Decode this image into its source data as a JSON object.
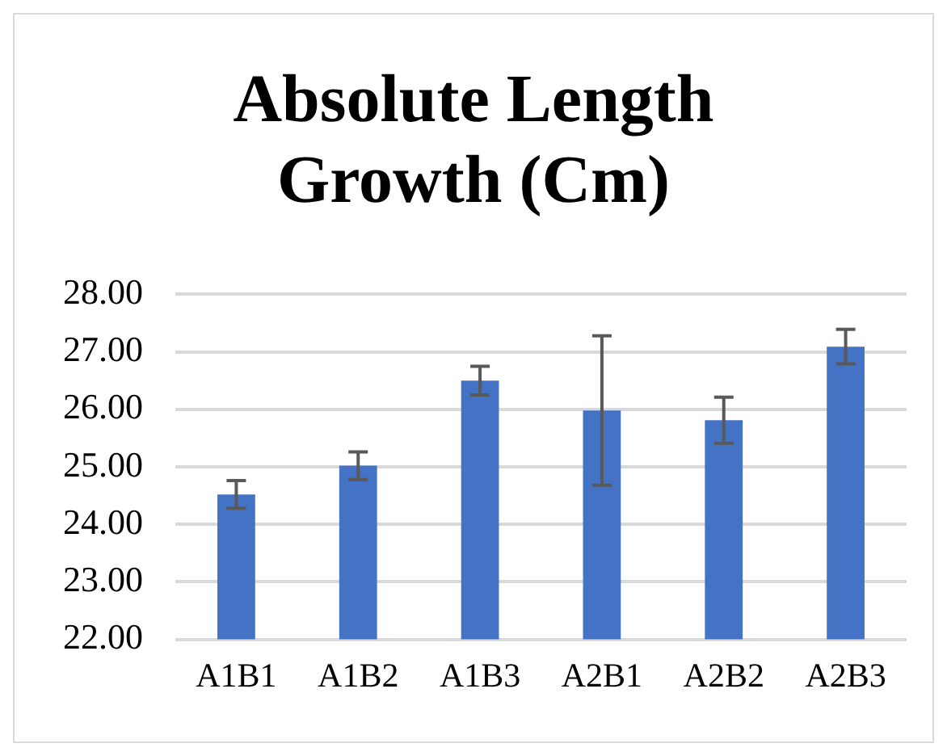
{
  "chart_data": {
    "type": "bar",
    "title": "Absolute Length Growth (Cm)",
    "categories": [
      "A1B1",
      "A1B2",
      "A1B3",
      "A2B1",
      "A2B2",
      "A2B3"
    ],
    "values": [
      24.52,
      25.02,
      26.5,
      25.98,
      25.81,
      27.09
    ],
    "errors": [
      0.24,
      0.24,
      0.25,
      1.3,
      0.4,
      0.3
    ],
    "color": "#4472c4",
    "ylim": [
      22,
      28
    ],
    "yticks": [
      {
        "value": 22,
        "label": "22.00"
      },
      {
        "value": 23,
        "label": "23.00"
      },
      {
        "value": 24,
        "label": "24.00"
      },
      {
        "value": 25,
        "label": "25.00"
      },
      {
        "value": 26,
        "label": "26.00"
      },
      {
        "value": 27,
        "label": "27.00"
      },
      {
        "value": 28,
        "label": "28.00"
      }
    ],
    "grid": "y",
    "legend": false
  }
}
